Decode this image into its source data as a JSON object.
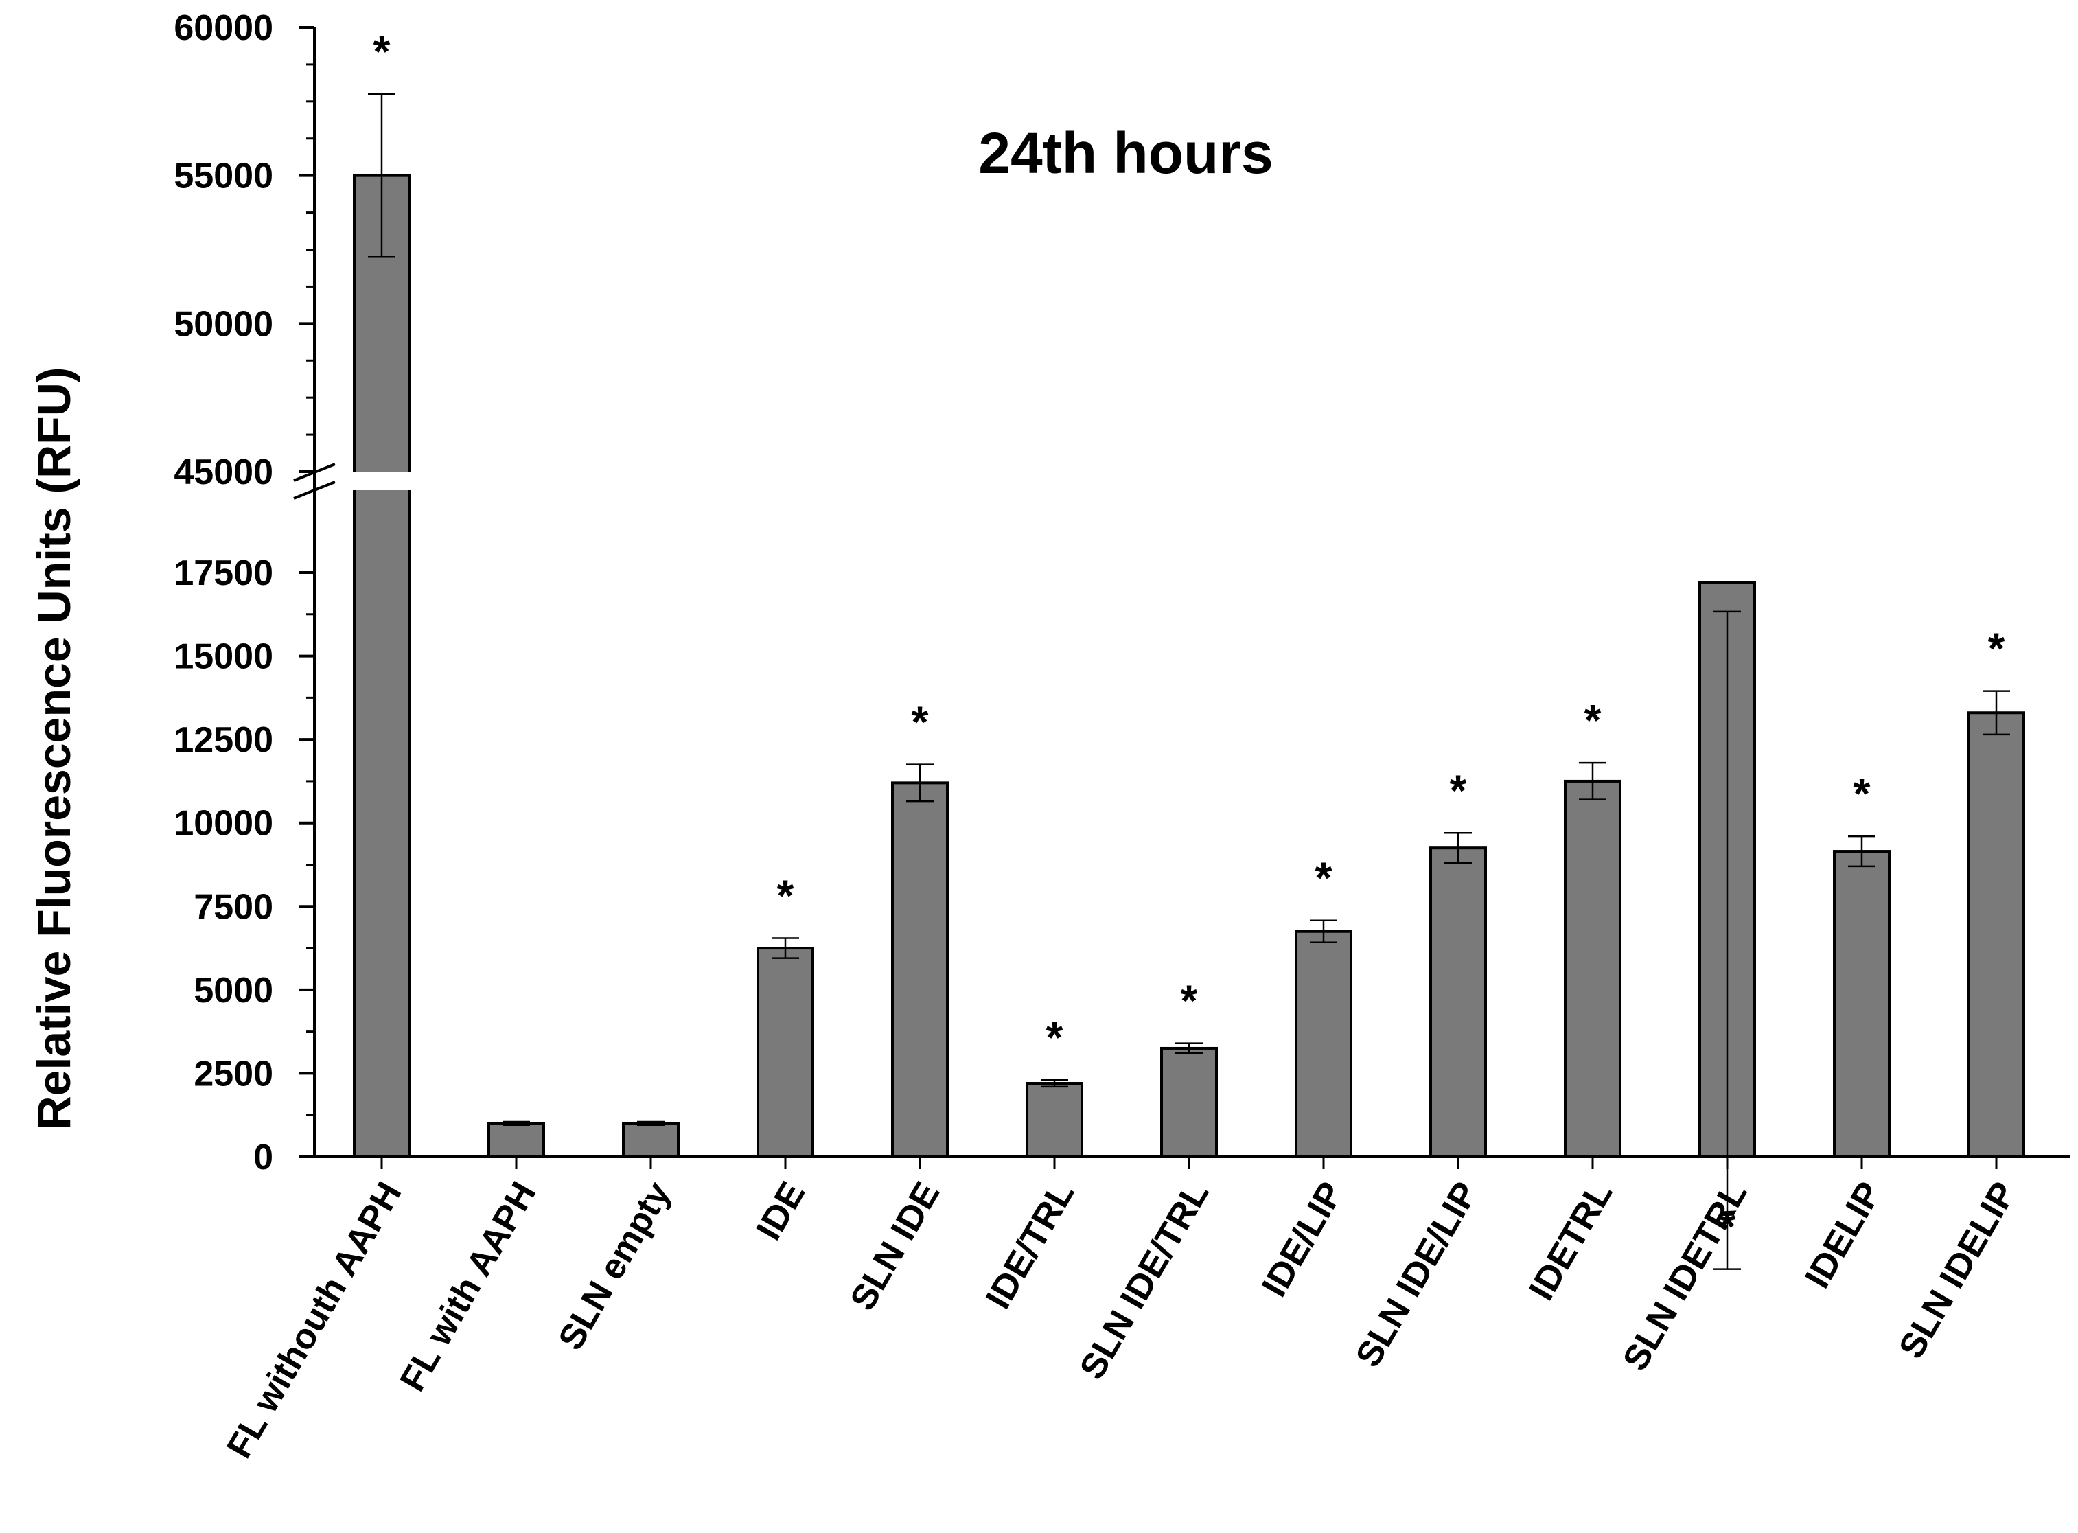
{
  "chart_data": {
    "type": "bar",
    "title": "24th hours",
    "xlabel": "",
    "ylabel": "Relative Fluorescence Units (RFU)",
    "axis_break": {
      "from": 17500,
      "to": 45000
    },
    "ylim_lower": [
      0,
      17500
    ],
    "ylim_upper": [
      45000,
      60000
    ],
    "yticks_lower": [
      "0",
      "2500",
      "5000",
      "7500",
      "10000",
      "12500",
      "15000",
      "17500"
    ],
    "yticks_upper": [
      "45000",
      "50000",
      "55000",
      "60000"
    ],
    "categories": [
      "FL withouth AAPH",
      "FL with AAPH",
      "SLN empty",
      "IDE",
      "SLN IDE",
      "IDE/TRL",
      "SLN IDE/TRL",
      "IDE/LIP",
      "SLN IDE/LIP",
      "IDETRL",
      "SLN IDETRL",
      "IDELIP",
      "SLN IDELIP"
    ],
    "values": [
      55000,
      1000,
      1000,
      6250,
      11200,
      2200,
      3250,
      6750,
      9250,
      11250,
      17200,
      9150,
      13300
    ],
    "errors": [
      2750,
      50,
      50,
      300,
      550,
      100,
      150,
      330,
      450,
      550,
      870,
      450,
      650
    ],
    "significance": [
      "*",
      "",
      "",
      "*",
      "*",
      "*",
      "*",
      "*",
      "*",
      "*",
      "*",
      "*",
      "*"
    ],
    "bar_color": "#7a7a7a",
    "grid": false,
    "legend": "none"
  }
}
